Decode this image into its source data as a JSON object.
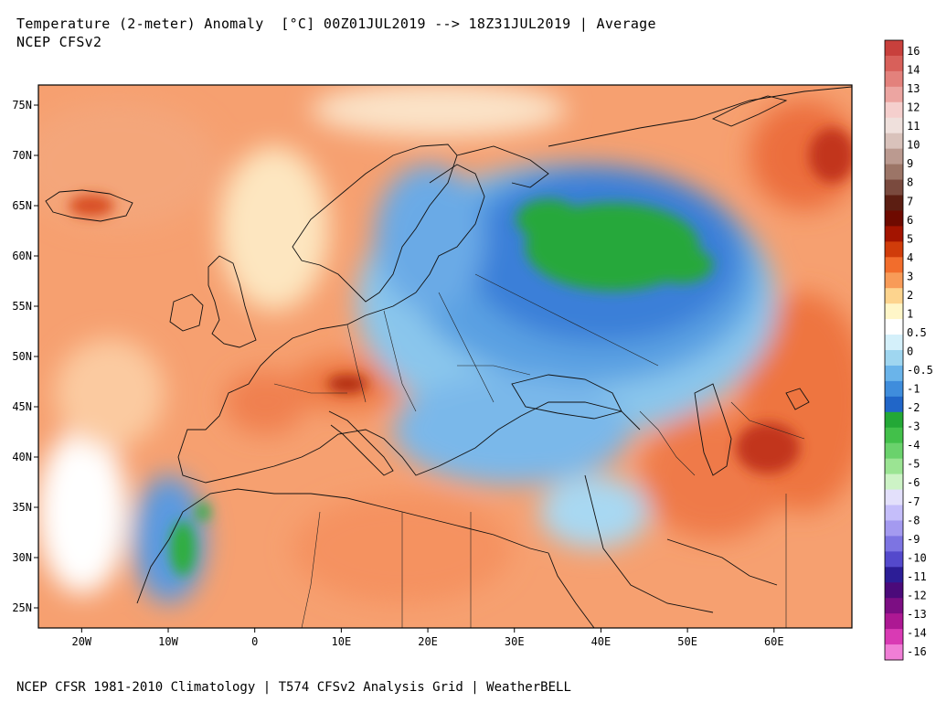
{
  "header": {
    "title": "Temperature (2-meter) Anomaly  [°C] 00Z01JUL2019 --> 18Z31JUL2019 | Average",
    "model": "NCEP CFSv2"
  },
  "footer": {
    "credits": "NCEP CFSR 1981-2010 Climatology | T574 CFSv2 Analysis Grid | WeatherBELL"
  },
  "map": {
    "lat_labels": [
      "75N",
      "70N",
      "65N",
      "60N",
      "55N",
      "50N",
      "45N",
      "40N",
      "35N",
      "30N",
      "25N"
    ],
    "lat_values": [
      75,
      70,
      65,
      60,
      55,
      50,
      45,
      40,
      35,
      30,
      25
    ],
    "lon_labels": [
      "20W",
      "10W",
      "0",
      "10E",
      "20E",
      "30E",
      "40E",
      "50E",
      "60E"
    ],
    "lon_values": [
      -20,
      -10,
      0,
      10,
      20,
      30,
      40,
      50,
      60
    ],
    "extent": {
      "lon": [
        -25,
        69
      ],
      "lat": [
        23,
        77
      ]
    }
  },
  "colorbar": {
    "labels": [
      "16",
      "14",
      "13",
      "12",
      "11",
      "10",
      "9",
      "8",
      "7",
      "6",
      "5",
      "4",
      "3",
      "2",
      "1",
      "0.5",
      "0",
      "-0.5",
      "-1",
      "-2",
      "-3",
      "-4",
      "-5",
      "-6",
      "-7",
      "-8",
      "-9",
      "-10",
      "-11",
      "-12",
      "-13",
      "-14",
      "-16"
    ],
    "colors": [
      "#c8403c",
      "#d8605a",
      "#e3817c",
      "#eca5a1",
      "#f5cfcd",
      "#efe0dc",
      "#d9c2bb",
      "#bb9a90",
      "#9c7567",
      "#7a4a3e",
      "#5c1e12",
      "#6e0a00",
      "#a31400",
      "#d03c0a",
      "#f26d2c",
      "#f89b58",
      "#fdd48e",
      "#fff6c8",
      "#ffffff",
      "#d4f0fa",
      "#9fd6f0",
      "#6ab4ea",
      "#3f8ddc",
      "#2166c8",
      "#23a836",
      "#42c04a",
      "#6ad26c",
      "#9be493",
      "#cdf3c6",
      "#e3e0fb",
      "#c5befa",
      "#a49af0",
      "#7d74e2",
      "#5449cc",
      "#2c1d96",
      "#4b0a7a",
      "#7c0e83",
      "#ad1893",
      "#d93ab4",
      "#f07ed6"
    ]
  }
}
